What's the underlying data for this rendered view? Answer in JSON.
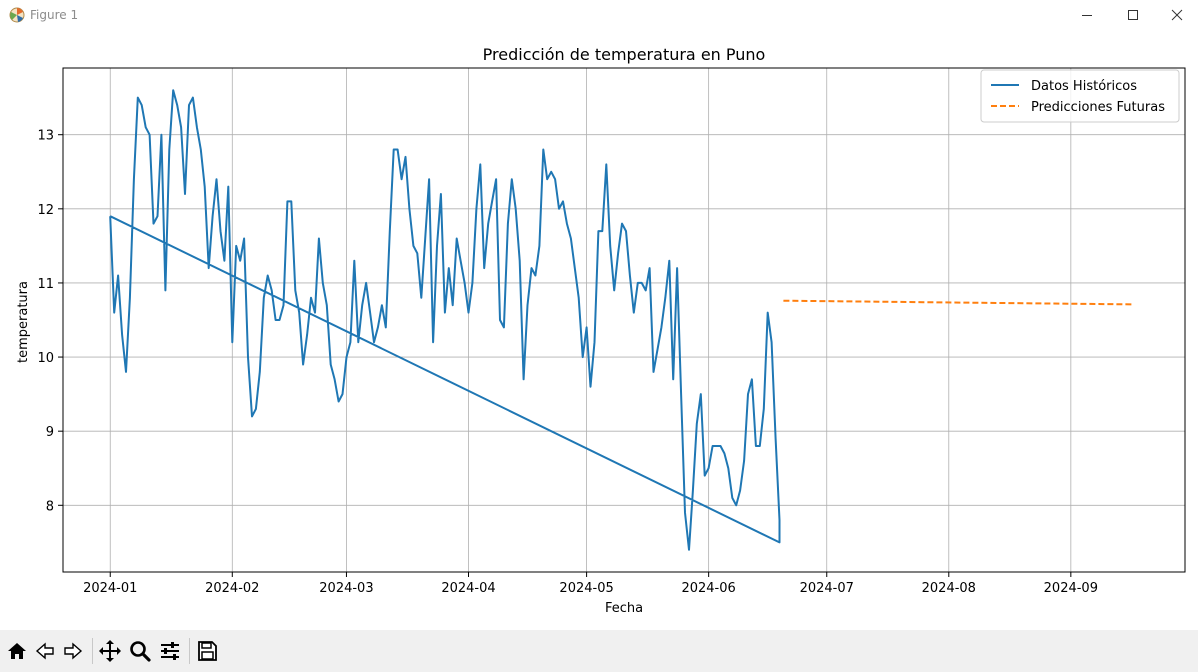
{
  "window": {
    "title": "Figure 1"
  },
  "toolbar": {
    "tools": [
      "home-icon",
      "back-arrow-icon",
      "forward-arrow-icon",
      "pan-move-icon",
      "zoom-magnifier-icon",
      "configure-subplots-icon",
      "save-floppy-icon"
    ]
  },
  "colors": {
    "historical": "#1f77b4",
    "predictions": "#ff7f0e",
    "grid": "#b0b0b0"
  },
  "chart_data": {
    "type": "line",
    "title": "Predicción de temperatura en Puno",
    "xlabel": "Fecha",
    "ylabel": "temperatura",
    "xlim": [
      "2023-12-20",
      "2024-09-30"
    ],
    "ylim": [
      7.1,
      13.9
    ],
    "x_ticks": [
      "2024-01-01",
      "2024-02-01",
      "2024-03-01",
      "2024-04-01",
      "2024-05-01",
      "2024-06-01",
      "2024-07-01",
      "2024-08-01",
      "2024-09-01"
    ],
    "x_tick_labels": [
      "2024-01",
      "2024-02",
      "2024-03",
      "2024-04",
      "2024-05",
      "2024-06",
      "2024-07",
      "2024-08",
      "2024-09"
    ],
    "y_ticks": [
      8,
      9,
      10,
      11,
      12,
      13
    ],
    "y_tick_labels": [
      "8",
      "9",
      "10",
      "11",
      "12",
      "13"
    ],
    "grid": true,
    "legend_position": "top-right",
    "series": [
      {
        "name": "Datos Históricos",
        "style": "solid",
        "points": [
          [
            "2024-01-01",
            11.9
          ],
          [
            "2024-01-02",
            10.6
          ],
          [
            "2024-01-03",
            11.1
          ],
          [
            "2024-01-04",
            10.3
          ],
          [
            "2024-01-05",
            9.8
          ],
          [
            "2024-01-06",
            10.8
          ],
          [
            "2024-01-07",
            12.4
          ],
          [
            "2024-01-08",
            13.5
          ],
          [
            "2024-01-09",
            13.4
          ],
          [
            "2024-01-10",
            13.1
          ],
          [
            "2024-01-11",
            13.0
          ],
          [
            "2024-01-12",
            11.8
          ],
          [
            "2024-01-13",
            11.9
          ],
          [
            "2024-01-14",
            13.0
          ],
          [
            "2024-01-15",
            10.9
          ],
          [
            "2024-01-16",
            12.8
          ],
          [
            "2024-01-17",
            13.6
          ],
          [
            "2024-01-18",
            13.4
          ],
          [
            "2024-01-19",
            13.1
          ],
          [
            "2024-01-20",
            12.2
          ],
          [
            "2024-01-21",
            13.4
          ],
          [
            "2024-01-22",
            13.5
          ],
          [
            "2024-01-23",
            13.1
          ],
          [
            "2024-01-24",
            12.8
          ],
          [
            "2024-01-25",
            12.3
          ],
          [
            "2024-01-26",
            11.2
          ],
          [
            "2024-01-27",
            11.9
          ],
          [
            "2024-01-28",
            12.4
          ],
          [
            "2024-01-29",
            11.7
          ],
          [
            "2024-01-30",
            11.3
          ],
          [
            "2024-01-31",
            12.3
          ],
          [
            "2024-02-01",
            10.2
          ],
          [
            "2024-02-02",
            11.5
          ],
          [
            "2024-02-03",
            11.3
          ],
          [
            "2024-02-04",
            11.6
          ],
          [
            "2024-02-05",
            10.0
          ],
          [
            "2024-02-06",
            9.2
          ],
          [
            "2024-02-07",
            9.3
          ],
          [
            "2024-02-08",
            9.8
          ],
          [
            "2024-02-09",
            10.8
          ],
          [
            "2024-02-10",
            11.1
          ],
          [
            "2024-02-11",
            10.9
          ],
          [
            "2024-02-12",
            10.5
          ],
          [
            "2024-02-13",
            10.5
          ],
          [
            "2024-02-14",
            10.7
          ],
          [
            "2024-02-15",
            12.1
          ],
          [
            "2024-02-16",
            12.1
          ],
          [
            "2024-02-17",
            10.9
          ],
          [
            "2024-02-18",
            10.6
          ],
          [
            "2024-02-19",
            9.9
          ],
          [
            "2024-02-20",
            10.3
          ],
          [
            "2024-02-21",
            10.8
          ],
          [
            "2024-02-22",
            10.6
          ],
          [
            "2024-02-23",
            11.6
          ],
          [
            "2024-02-24",
            11.0
          ],
          [
            "2024-02-25",
            10.7
          ],
          [
            "2024-02-26",
            9.9
          ],
          [
            "2024-02-27",
            9.7
          ],
          [
            "2024-02-28",
            9.4
          ],
          [
            "2024-02-29",
            9.5
          ],
          [
            "2024-03-01",
            10.0
          ],
          [
            "2024-03-02",
            10.2
          ],
          [
            "2024-03-03",
            11.3
          ],
          [
            "2024-03-04",
            10.2
          ],
          [
            "2024-03-05",
            10.7
          ],
          [
            "2024-03-06",
            11.0
          ],
          [
            "2024-03-07",
            10.6
          ],
          [
            "2024-03-08",
            10.2
          ],
          [
            "2024-03-09",
            10.4
          ],
          [
            "2024-03-10",
            10.7
          ],
          [
            "2024-03-11",
            10.4
          ],
          [
            "2024-03-12",
            11.7
          ],
          [
            "2024-03-13",
            12.8
          ],
          [
            "2024-03-14",
            12.8
          ],
          [
            "2024-03-15",
            12.4
          ],
          [
            "2024-03-16",
            12.7
          ],
          [
            "2024-03-17",
            12.0
          ],
          [
            "2024-03-18",
            11.5
          ],
          [
            "2024-03-19",
            11.4
          ],
          [
            "2024-03-20",
            10.8
          ],
          [
            "2024-03-21",
            11.6
          ],
          [
            "2024-03-22",
            12.4
          ],
          [
            "2024-03-23",
            10.2
          ],
          [
            "2024-03-24",
            11.5
          ],
          [
            "2024-03-25",
            12.2
          ],
          [
            "2024-03-26",
            10.6
          ],
          [
            "2024-03-27",
            11.2
          ],
          [
            "2024-03-28",
            10.7
          ],
          [
            "2024-03-29",
            11.6
          ],
          [
            "2024-03-30",
            11.3
          ],
          [
            "2024-03-31",
            11.0
          ],
          [
            "2024-04-01",
            10.6
          ],
          [
            "2024-04-02",
            11.0
          ],
          [
            "2024-04-03",
            12.0
          ],
          [
            "2024-04-04",
            12.6
          ],
          [
            "2024-04-05",
            11.2
          ],
          [
            "2024-04-06",
            11.8
          ],
          [
            "2024-04-07",
            12.1
          ],
          [
            "2024-04-08",
            12.4
          ],
          [
            "2024-04-09",
            10.5
          ],
          [
            "2024-04-10",
            10.4
          ],
          [
            "2024-04-11",
            11.8
          ],
          [
            "2024-04-12",
            12.4
          ],
          [
            "2024-04-13",
            12.0
          ],
          [
            "2024-04-14",
            11.3
          ],
          [
            "2024-04-15",
            9.7
          ],
          [
            "2024-04-16",
            10.7
          ],
          [
            "2024-04-17",
            11.2
          ],
          [
            "2024-04-18",
            11.1
          ],
          [
            "2024-04-19",
            11.5
          ],
          [
            "2024-04-20",
            12.8
          ],
          [
            "2024-04-21",
            12.4
          ],
          [
            "2024-04-22",
            12.5
          ],
          [
            "2024-04-23",
            12.4
          ],
          [
            "2024-04-24",
            12.0
          ],
          [
            "2024-04-25",
            12.1
          ],
          [
            "2024-04-26",
            11.8
          ],
          [
            "2024-04-27",
            11.6
          ],
          [
            "2024-04-28",
            11.2
          ],
          [
            "2024-04-29",
            10.8
          ],
          [
            "2024-04-30",
            10.0
          ],
          [
            "2024-05-01",
            10.4
          ],
          [
            "2024-05-02",
            9.6
          ],
          [
            "2024-05-03",
            10.2
          ],
          [
            "2024-05-04",
            11.7
          ],
          [
            "2024-05-05",
            11.7
          ],
          [
            "2024-05-06",
            12.6
          ],
          [
            "2024-05-07",
            11.5
          ],
          [
            "2024-05-08",
            10.9
          ],
          [
            "2024-05-09",
            11.4
          ],
          [
            "2024-05-10",
            11.8
          ],
          [
            "2024-05-11",
            11.7
          ],
          [
            "2024-05-12",
            11.1
          ],
          [
            "2024-05-13",
            10.6
          ],
          [
            "2024-05-14",
            11.0
          ],
          [
            "2024-05-15",
            11.0
          ],
          [
            "2024-05-16",
            10.9
          ],
          [
            "2024-05-17",
            11.2
          ],
          [
            "2024-05-18",
            9.8
          ],
          [
            "2024-05-19",
            10.1
          ],
          [
            "2024-05-20",
            10.4
          ],
          [
            "2024-05-21",
            10.8
          ],
          [
            "2024-05-22",
            11.3
          ],
          [
            "2024-05-23",
            9.7
          ],
          [
            "2024-05-24",
            11.2
          ],
          [
            "2024-05-25",
            9.5
          ],
          [
            "2024-05-26",
            7.9
          ],
          [
            "2024-05-27",
            7.4
          ],
          [
            "2024-05-28",
            8.2
          ],
          [
            "2024-05-29",
            9.1
          ],
          [
            "2024-05-30",
            9.5
          ],
          [
            "2024-05-31",
            8.4
          ],
          [
            "2024-06-01",
            8.5
          ],
          [
            "2024-06-02",
            8.8
          ],
          [
            "2024-06-03",
            8.8
          ],
          [
            "2024-06-04",
            8.8
          ],
          [
            "2024-06-05",
            8.7
          ],
          [
            "2024-06-06",
            8.5
          ],
          [
            "2024-06-07",
            8.1
          ],
          [
            "2024-06-08",
            8.0
          ],
          [
            "2024-06-09",
            8.2
          ],
          [
            "2024-06-10",
            8.6
          ],
          [
            "2024-06-11",
            9.5
          ],
          [
            "2024-06-12",
            9.7
          ],
          [
            "2024-06-13",
            8.8
          ],
          [
            "2024-06-14",
            8.8
          ],
          [
            "2024-06-15",
            9.3
          ],
          [
            "2024-06-16",
            10.6
          ],
          [
            "2024-06-17",
            10.2
          ],
          [
            "2024-06-18",
            8.9
          ],
          [
            "2024-06-19",
            7.8
          ],
          [
            "2024-06-19",
            7.5
          ],
          [
            "2024-01-01",
            11.9
          ]
        ]
      },
      {
        "name": "Predicciones Futuras",
        "style": "dashed",
        "points": [
          [
            "2024-06-20",
            10.76
          ],
          [
            "2024-09-17",
            10.71
          ]
        ]
      }
    ]
  }
}
